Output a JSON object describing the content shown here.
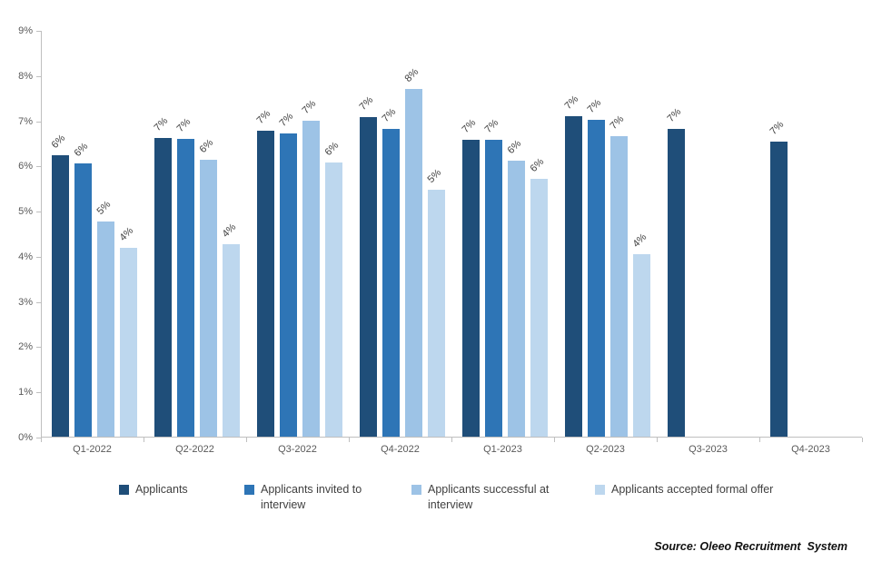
{
  "chart_data": {
    "type": "bar",
    "title": "",
    "categories": [
      "Q1-2022",
      "Q2-2022",
      "Q3-2022",
      "Q4-2022",
      "Q1-2023",
      "Q2-2023",
      "Q3-2023",
      "Q4-2023"
    ],
    "series": [
      {
        "name": "Applicants",
        "color": "#1F4E79",
        "values": [
          6.22,
          6.62,
          6.77,
          7.08,
          6.58,
          7.1,
          6.82,
          6.52
        ],
        "labels": [
          "6%",
          "7%",
          "7%",
          "7%",
          "7%",
          "7%",
          "7%",
          "7%"
        ]
      },
      {
        "name": "Applicants invited to interview",
        "color": "#2E75B6",
        "values": [
          6.05,
          6.6,
          6.72,
          6.82,
          6.58,
          7.01,
          null,
          null
        ],
        "labels": [
          "6%",
          "7%",
          "7%",
          "7%",
          "7%",
          "7%",
          "",
          ""
        ]
      },
      {
        "name": "Applicants successful at interview",
        "color": "#9DC3E6",
        "values": [
          4.76,
          6.13,
          7.0,
          7.7,
          6.1,
          6.65,
          null,
          null
        ],
        "labels": [
          "5%",
          "6%",
          "7%",
          "8%",
          "6%",
          "7%",
          "",
          ""
        ]
      },
      {
        "name": "Applicants accepted formal offer",
        "color": "#BDD7EE",
        "values": [
          4.18,
          4.26,
          6.06,
          5.47,
          5.7,
          4.03,
          null,
          null
        ],
        "labels": [
          "4%",
          "4%",
          "6%",
          "5%",
          "6%",
          "4%",
          "",
          ""
        ]
      }
    ],
    "ylim": [
      0,
      9
    ],
    "ytick_step": 1,
    "ytick_suffix": "%",
    "grid": false,
    "legend_position": "bottom",
    "source": "Source: Oleeo Recruitment  System"
  },
  "layout_hints": {
    "legend_wrap_notes": [
      "Applicants",
      "Applicants invited | to interview",
      "Applicants successful | at interview",
      "Applicants accepted formal offer"
    ]
  }
}
